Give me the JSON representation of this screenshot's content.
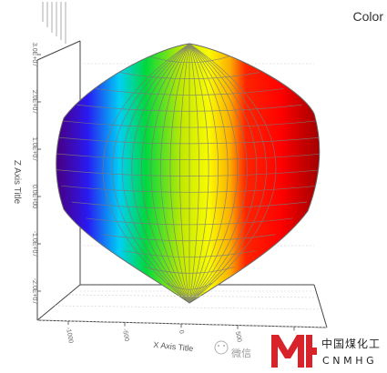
{
  "chart_data": {
    "type": "surface",
    "title": "",
    "colormap_title": "Color",
    "colormap": [
      "#6a00c8",
      "#2a1cff",
      "#00d8ff",
      "#00e040",
      "#c8f000",
      "#ffff00",
      "#ffb000",
      "#ff2400",
      "#ff0000",
      "#d80000"
    ],
    "shape": "ellipsoid lens (point at top and bottom)",
    "x_axis_label": "X Axis Title",
    "y_axis_label": "Z Axis Title",
    "z_tick_labels": [
      "-2.0E+07",
      "-1.0E+07",
      "0.0E+00",
      "1.0E+07",
      "2.0E+07",
      "3.0E+07"
    ],
    "x_tick_labels": [
      "-1000",
      "-500",
      "0",
      "500",
      "1000"
    ],
    "grid": true
  },
  "watermark": {
    "wechat_text": "微信",
    "brand_cn": "中国煤化工",
    "brand_en": "CNMHG"
  }
}
